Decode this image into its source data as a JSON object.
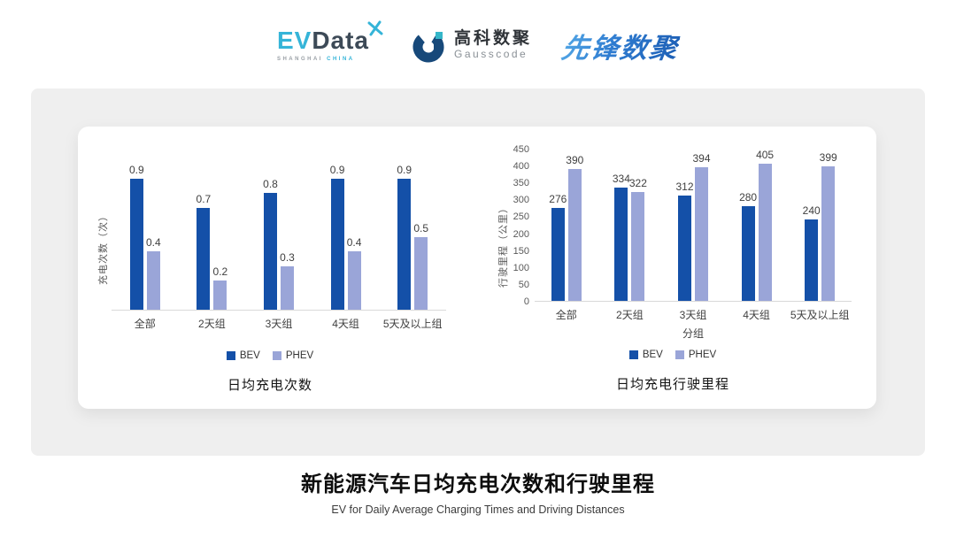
{
  "header": {
    "evdata": {
      "ev": "EV",
      "data": "Data",
      "sub_left": "SHANGHAI",
      "sub_right": "CHINA"
    },
    "gausscode": {
      "cn": "高科数聚",
      "en": "Gausscode"
    },
    "pioneer": {
      "text": "先锋数聚"
    }
  },
  "palette": {
    "BEV": "#1450A8",
    "PHEV": "#9AA5D8"
  },
  "chart_data": [
    {
      "type": "bar",
      "title": "日均充电次数",
      "categories": [
        "全部",
        "2天组",
        "3天组",
        "4天组",
        "5天及以上组"
      ],
      "series": [
        {
          "name": "BEV",
          "values": [
            0.9,
            0.7,
            0.8,
            0.9,
            0.9
          ]
        },
        {
          "name": "PHEV",
          "values": [
            0.4,
            0.2,
            0.3,
            0.4,
            0.5
          ]
        }
      ],
      "xlabel": "",
      "ylabel": "充电次数（次）",
      "ylim": [
        0,
        1.0
      ],
      "yticks": [],
      "grid": false,
      "legend_position": "bottom"
    },
    {
      "type": "bar",
      "title": "日均充电行驶里程",
      "categories": [
        "全部",
        "2天组",
        "3天组",
        "4天组",
        "5天及以上组"
      ],
      "series": [
        {
          "name": "BEV",
          "values": [
            276,
            334,
            312,
            280,
            240
          ]
        },
        {
          "name": "PHEV",
          "values": [
            390,
            322,
            394,
            405,
            399
          ]
        }
      ],
      "xlabel": "分组",
      "ylabel": "行驶里程（公里）",
      "ylim": [
        0,
        450
      ],
      "yticks": [
        0,
        50,
        100,
        150,
        200,
        250,
        300,
        350,
        400,
        450
      ],
      "grid": false,
      "legend_position": "bottom"
    }
  ],
  "footer": {
    "title": "新能源汽车日均充电次数和行驶里程",
    "subtitle": "EV for Daily Average Charging Times and Driving Distances"
  }
}
